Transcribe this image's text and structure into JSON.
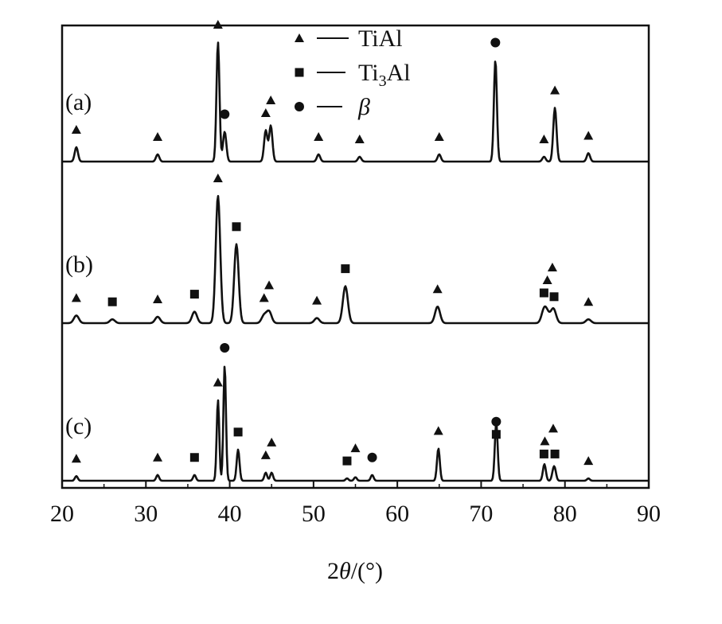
{
  "chart_data": {
    "type": "line",
    "x_axis": {
      "label_prefix": "2",
      "label_symbol": "θ",
      "label_suffix": "/(°)",
      "range": [
        20,
        90
      ],
      "ticks": [
        20,
        30,
        40,
        50,
        60,
        70,
        80,
        90
      ]
    },
    "y_axis": {
      "ticks_shown": false
    },
    "legend": {
      "placement": "top-center",
      "entries": [
        {
          "marker": "triangle",
          "text": "TiAl"
        },
        {
          "marker": "square",
          "text": "Ti3Al",
          "text_main": "Ti",
          "text_sub": "3",
          "text_tail": "Al"
        },
        {
          "marker": "circle",
          "text": "β"
        }
      ],
      "dash": "—"
    },
    "series": [
      {
        "name": "(a)",
        "peaks": [
          {
            "x": 21.7,
            "height": 0.12,
            "phase": "triangle"
          },
          {
            "x": 31.4,
            "height": 0.06,
            "phase": "triangle"
          },
          {
            "x": 38.6,
            "height": 1.0,
            "phase": "triangle"
          },
          {
            "x": 39.4,
            "height": 0.25,
            "phase": "circle"
          },
          {
            "x": 44.3,
            "height": 0.26,
            "phase": "triangle"
          },
          {
            "x": 44.9,
            "height": 0.3,
            "phase": "triangle"
          },
          {
            "x": 50.6,
            "height": 0.06,
            "phase": "triangle"
          },
          {
            "x": 55.5,
            "height": 0.04,
            "phase": "triangle"
          },
          {
            "x": 65.0,
            "height": 0.06,
            "phase": "triangle"
          },
          {
            "x": 71.7,
            "height": 0.85,
            "phase": "circle"
          },
          {
            "x": 77.5,
            "height": 0.04,
            "phase": "triangle"
          },
          {
            "x": 78.8,
            "height": 0.45,
            "phase": "triangle"
          },
          {
            "x": 82.8,
            "height": 0.07,
            "phase": "triangle"
          }
        ]
      },
      {
        "name": "(b)",
        "peaks": [
          {
            "x": 21.7,
            "height": 0.06,
            "phase": "triangle"
          },
          {
            "x": 26.0,
            "height": 0.03,
            "phase": "square"
          },
          {
            "x": 31.4,
            "height": 0.05,
            "phase": "triangle"
          },
          {
            "x": 35.8,
            "height": 0.09,
            "phase": "square"
          },
          {
            "x": 38.6,
            "height": 1.0,
            "phase": "triangle"
          },
          {
            "x": 40.8,
            "height": 0.62,
            "phase": "square"
          },
          {
            "x": 44.1,
            "height": 0.06,
            "phase": "triangle"
          },
          {
            "x": 44.7,
            "height": 0.09,
            "phase": "triangle"
          },
          {
            "x": 50.4,
            "height": 0.04,
            "phase": "triangle"
          },
          {
            "x": 53.8,
            "height": 0.29,
            "phase": "square"
          },
          {
            "x": 64.8,
            "height": 0.13,
            "phase": "triangle"
          },
          {
            "x": 77.5,
            "height": 0.1,
            "phase": "square"
          },
          {
            "x": 78.7,
            "height": 0.07,
            "phase": "square"
          },
          {
            "x": 77.9,
            "height": 0.06,
            "phase": "triangle"
          },
          {
            "x": 78.5,
            "height": 0.05,
            "phase": "triangle"
          },
          {
            "x": 82.8,
            "height": 0.03,
            "phase": "triangle"
          }
        ]
      },
      {
        "name": "(c)",
        "peaks": [
          {
            "x": 21.7,
            "height": 0.04,
            "phase": "triangle"
          },
          {
            "x": 31.4,
            "height": 0.05,
            "phase": "triangle"
          },
          {
            "x": 35.8,
            "height": 0.05,
            "phase": "square"
          },
          {
            "x": 38.6,
            "height": 0.7,
            "phase": "triangle"
          },
          {
            "x": 39.4,
            "height": 1.0,
            "phase": "circle"
          },
          {
            "x": 41.0,
            "height": 0.27,
            "phase": "square"
          },
          {
            "x": 44.3,
            "height": 0.07,
            "phase": "triangle"
          },
          {
            "x": 45.0,
            "height": 0.07,
            "phase": "triangle"
          },
          {
            "x": 54.0,
            "height": 0.02,
            "phase": "square"
          },
          {
            "x": 55.0,
            "height": 0.03,
            "phase": "triangle"
          },
          {
            "x": 57.0,
            "height": 0.05,
            "phase": "circle"
          },
          {
            "x": 64.9,
            "height": 0.28,
            "phase": "triangle"
          },
          {
            "x": 71.8,
            "height": 0.25,
            "phase": "square"
          },
          {
            "x": 71.8,
            "height": 0.25,
            "phase": "circle"
          },
          {
            "x": 77.5,
            "height": 0.08,
            "phase": "square"
          },
          {
            "x": 78.8,
            "height": 0.08,
            "phase": "square"
          },
          {
            "x": 77.6,
            "height": 0.07,
            "phase": "triangle"
          },
          {
            "x": 78.6,
            "height": 0.07,
            "phase": "triangle"
          },
          {
            "x": 82.8,
            "height": 0.02,
            "phase": "triangle"
          }
        ]
      }
    ]
  }
}
